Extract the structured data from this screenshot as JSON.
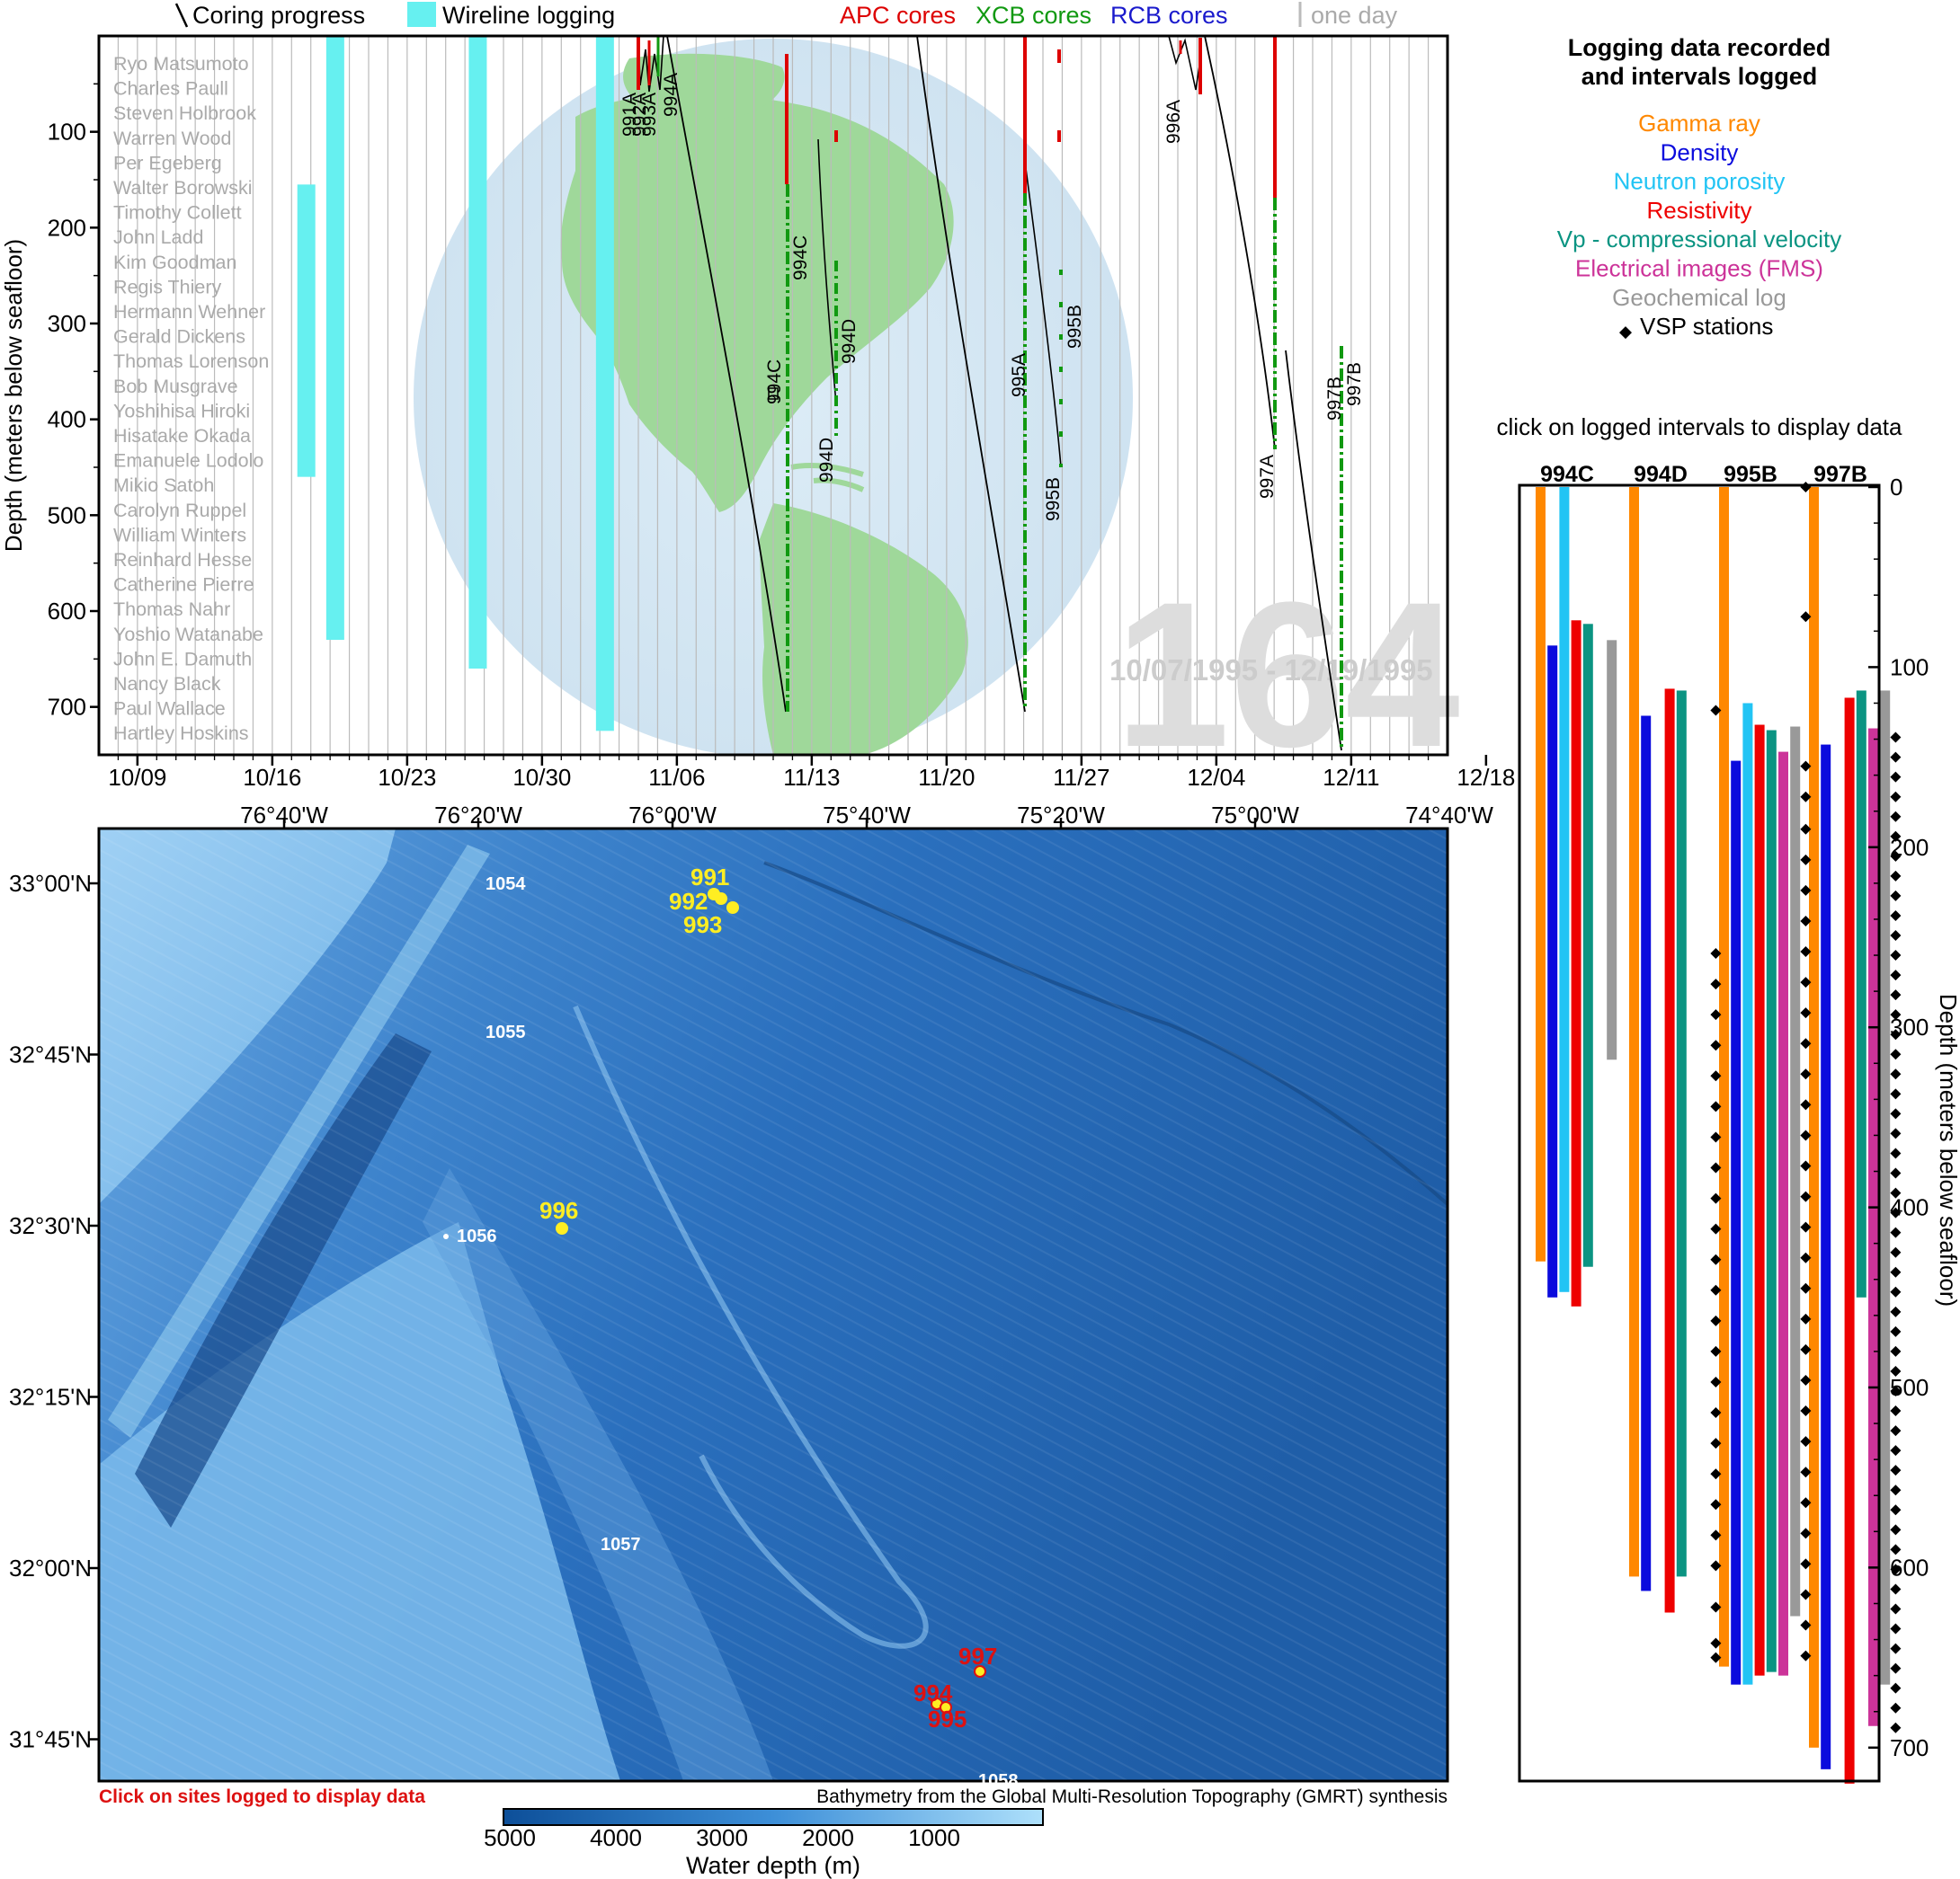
{
  "colors": {
    "apc": "#dd0000",
    "xcb": "#119911",
    "rcb": "#1a1acc",
    "wireline": "#66f0f0",
    "one_day": "#bbbbbb",
    "gamma": "#ff8800",
    "density": "#0b0bdd",
    "neutron": "#22c4f4",
    "resistivity": "#ee0000",
    "vp": "#0b9482",
    "fms": "#cc3399",
    "geochem": "#999999",
    "vsp": "#000000",
    "map_deep": "#1e5fa8",
    "map_shallow": "#8fc4ee",
    "globe_ocean": "#d3e6f3",
    "globe_land": "#9fd89a",
    "site_logged": "#ffee22",
    "site_other": "#dd1111"
  },
  "timeline": {
    "legend": {
      "coring": "Coring progress",
      "wireline": "Wireline logging",
      "apc": "APC cores",
      "xcb": "XCB cores",
      "rcb": "RCB cores",
      "one_day": "one day"
    },
    "ylabel": "Depth (meters below seafloor)",
    "y_ticks": [
      "100",
      "200",
      "300",
      "400",
      "500",
      "600",
      "700"
    ],
    "x_ticks": [
      "10/09",
      "10/16",
      "10/23",
      "10/30",
      "11/06",
      "11/13",
      "11/20",
      "11/27",
      "12/04",
      "12/11",
      "12/18"
    ],
    "leg_number": "164",
    "date_range": "10/07/1995 - 12/19/1995",
    "scientists": [
      "Ryo Matsumoto",
      "Charles Paull",
      "Steven Holbrook",
      "Warren Wood",
      "Per Egeberg",
      "Walter Borowski",
      "Timothy Collett",
      "John Ladd",
      "Kim Goodman",
      "Regis Thiery",
      "Hermann Wehner",
      "Gerald Dickens",
      "Thomas Lorenson",
      "Bob Musgrave",
      "Yoshihisa Hiroki",
      "Hisatake Okada",
      "Emanuele Lodolo",
      "Mikio Satoh",
      "Carolyn Ruppel",
      "William Winters",
      "Reinhard Hesse",
      "Catherine Pierre",
      "Thomas Nahr",
      "Yoshio Watanabe",
      "John E. Damuth",
      "Nancy Black",
      "Paul Wallace",
      "Hartley Hoskins"
    ],
    "hole_labels": [
      "991A",
      "992A",
      "993A",
      "994A",
      "994C",
      "994C",
      "994D",
      "994D",
      "995A",
      "995B",
      "995B",
      "996A",
      "997A",
      "997B",
      "997B"
    ],
    "wireline_runs": [
      {
        "hole": "994C",
        "day": 10.3,
        "top": 155,
        "bottom": 460
      },
      {
        "hole": "994D",
        "day": 11.8,
        "top": 0,
        "bottom": 630
      },
      {
        "hole": "995B",
        "day": 19.2,
        "top": 0,
        "bottom": 660
      },
      {
        "hole": "997B",
        "day": 25.8,
        "top": 0,
        "bottom": 725
      }
    ]
  },
  "logging_panel": {
    "title": "Logging data recorded\nand intervals logged",
    "legend": [
      {
        "key": "gamma",
        "label": "Gamma ray"
      },
      {
        "key": "density",
        "label": "Density"
      },
      {
        "key": "neutron",
        "label": "Neutron porosity"
      },
      {
        "key": "resistivity",
        "label": "Resistivity"
      },
      {
        "key": "vp",
        "label": "Vp - compressional velocity"
      },
      {
        "key": "fms",
        "label": "Electrical images (FMS)"
      },
      {
        "key": "geochem",
        "label": "Geochemical log"
      },
      {
        "key": "vsp",
        "label": "VSP stations"
      }
    ],
    "instruction": "click on logged intervals to display data",
    "ylabel": "Depth (meters below seafloor)",
    "y_ticks": [
      "0",
      "100",
      "200",
      "300",
      "400",
      "500",
      "600",
      "700"
    ]
  },
  "chart_data": {
    "type": "bar",
    "categories": [
      "994C",
      "994D",
      "995B",
      "997B"
    ],
    "ylim": [
      0,
      720
    ],
    "series": [
      {
        "name": "Gamma ray",
        "key": "gamma",
        "values": [
          [
            0,
            430
          ],
          [
            0,
            605
          ],
          [
            0,
            655
          ],
          [
            0,
            700
          ]
        ]
      },
      {
        "name": "Density",
        "key": "density",
        "values": [
          [
            88,
            450
          ],
          [
            127,
            613
          ],
          [
            152,
            665
          ],
          [
            143,
            712
          ]
        ]
      },
      {
        "name": "Neutron porosity",
        "key": "neutron",
        "values": [
          [
            0,
            447
          ],
          null,
          [
            120,
            665
          ],
          null
        ]
      },
      {
        "name": "Resistivity",
        "key": "resistivity",
        "values": [
          [
            74,
            455
          ],
          [
            112,
            625
          ],
          [
            132,
            660
          ],
          [
            117,
            720
          ]
        ]
      },
      {
        "name": "Vp - compressional velocity",
        "key": "vp",
        "values": [
          [
            76,
            433
          ],
          [
            113,
            605
          ],
          [
            135,
            658
          ],
          [
            113,
            450
          ]
        ]
      },
      {
        "name": "Electrical images (FMS)",
        "key": "fms",
        "values": [
          null,
          null,
          [
            147,
            660
          ],
          [
            134,
            688
          ]
        ]
      },
      {
        "name": "Geochemical log",
        "key": "geochem",
        "values": [
          [
            85,
            318
          ],
          null,
          [
            133,
            627
          ],
          [
            113,
            665
          ]
        ]
      }
    ],
    "vsp_stations": [
      {
        "hole": "994D",
        "depths": [
          124,
          259,
          276,
          293,
          310,
          327,
          344,
          361,
          378,
          395,
          412,
          429,
          446,
          463,
          480,
          497,
          514,
          531,
          548,
          565,
          582,
          599,
          622,
          642,
          650
        ]
      },
      {
        "hole": "995B",
        "depths": [
          0,
          72,
          155,
          172,
          190,
          207,
          224,
          241,
          258,
          275,
          292,
          309,
          326,
          343,
          360,
          377,
          394,
          411,
          428,
          445,
          462,
          479,
          496,
          513,
          530,
          547,
          564,
          581,
          598,
          615,
          632,
          649
        ]
      },
      {
        "hole": "997B",
        "depths": [
          139,
          150,
          161,
          172,
          183,
          194,
          205,
          216,
          227,
          238,
          249,
          260,
          271,
          282,
          293,
          304,
          315,
          326,
          337,
          348,
          359,
          370,
          381,
          392,
          403,
          414,
          425,
          436,
          447,
          458,
          469,
          480,
          491,
          502,
          513,
          524,
          535,
          546,
          557,
          568,
          579,
          590,
          601,
          612,
          623,
          634,
          645,
          656,
          667,
          678,
          689
        ]
      }
    ]
  },
  "map": {
    "lon_ticks": [
      "76°40'W",
      "76°20'W",
      "76°00'W",
      "75°40'W",
      "75°20'W",
      "75°00'W",
      "74°40'W"
    ],
    "lat_ticks": [
      "33°00'N",
      "32°45'N",
      "32°30'N",
      "32°15'N",
      "32°00'N",
      "31°45'N"
    ],
    "sites_logged": [
      "991",
      "992",
      "993",
      "996"
    ],
    "sites_other": [
      "994",
      "995",
      "997"
    ],
    "other_labels": [
      "1054",
      "1055",
      "1056",
      "1057",
      "1058"
    ],
    "click_note": "Click on sites logged to display data",
    "source": "Bathymetry from the Global Multi-Resolution Topography (GMRT) synthesis",
    "colorbar_ticks": [
      "5000",
      "4000",
      "3000",
      "2000",
      "1000"
    ],
    "colorbar_label": "Water depth (m)"
  }
}
